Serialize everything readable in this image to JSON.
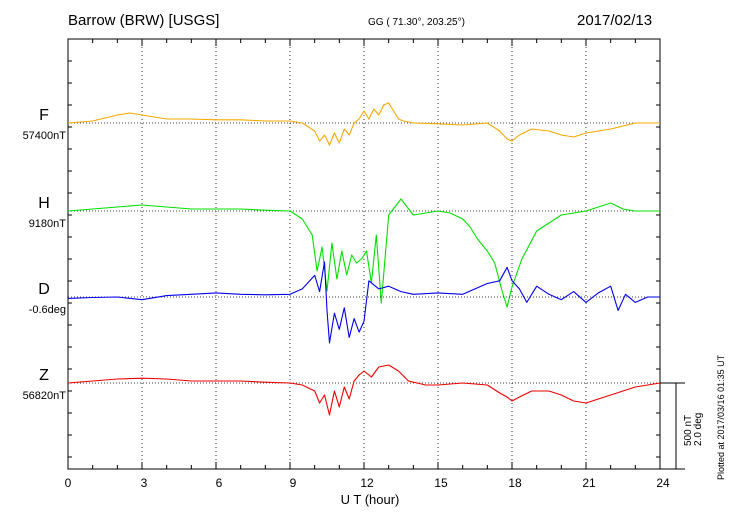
{
  "header": {
    "station": "Barrow (BRW)  [USGS]",
    "coords": "GG ( 71.30°, 203.25°)",
    "date": "2017/02/13"
  },
  "scale_bar": {
    "label_nt": "500 nT",
    "label_deg": "2.0 deg"
  },
  "plotted_note": "Plotted at 2017/03/16 01:35 UT",
  "chart_data": {
    "type": "line",
    "xlabel": "U T (hour)",
    "xlim": [
      0,
      24
    ],
    "xticks": [
      "0",
      "3",
      "6",
      "9",
      "12",
      "15",
      "18",
      "21",
      "24"
    ],
    "grid": true,
    "series": [
      {
        "name": "F",
        "baseline": "57400nT",
        "color": "#f5a800",
        "x": [
          0,
          1,
          2,
          2.5,
          3,
          4,
          5,
          6,
          7,
          8,
          9,
          9.5,
          10,
          10.2,
          10.4,
          10.6,
          10.8,
          11,
          11.2,
          11.4,
          11.6,
          11.8,
          12,
          12.2,
          12.4,
          12.6,
          12.8,
          13,
          13.2,
          13.4,
          13.6,
          14,
          15,
          16,
          17,
          17.5,
          17.8,
          18,
          18.3,
          18.8,
          19.5,
          20,
          20.5,
          21,
          22,
          23,
          24
        ],
        "y": [
          0,
          5,
          20,
          25,
          20,
          10,
          10,
          8,
          8,
          5,
          5,
          0,
          -20,
          -45,
          -30,
          -55,
          -25,
          -50,
          -15,
          -30,
          0,
          10,
          30,
          10,
          35,
          20,
          45,
          50,
          30,
          10,
          5,
          0,
          -2,
          -5,
          0,
          -20,
          -40,
          -45,
          -30,
          -15,
          -20,
          -30,
          -35,
          -25,
          -15,
          0,
          0
        ]
      },
      {
        "name": "H",
        "baseline": "9180nT",
        "color": "#00e000",
        "x": [
          0,
          1,
          2,
          3,
          4,
          5,
          6,
          7,
          8,
          9,
          9.5,
          9.9,
          10.1,
          10.3,
          10.5,
          10.7,
          10.9,
          11.1,
          11.3,
          11.5,
          11.7,
          11.9,
          12.1,
          12.3,
          12.5,
          12.7,
          13,
          13.5,
          14,
          15,
          15.5,
          16,
          16.3,
          16.6,
          17,
          17.3,
          17.6,
          17.8,
          18,
          18.4,
          19,
          19.5,
          20,
          20.5,
          21,
          21.5,
          22,
          22.5,
          23,
          24
        ],
        "y": [
          0,
          5,
          10,
          15,
          10,
          5,
          5,
          5,
          2,
          0,
          -20,
          -60,
          -150,
          -90,
          -200,
          -80,
          -170,
          -100,
          -160,
          -110,
          -130,
          -120,
          -100,
          -180,
          -60,
          -230,
          -10,
          30,
          -10,
          0,
          -5,
          -20,
          -40,
          -70,
          -100,
          -130,
          -200,
          -240,
          -190,
          -120,
          -50,
          -30,
          -10,
          -5,
          0,
          10,
          20,
          5,
          0,
          0
        ]
      },
      {
        "name": "D",
        "baseline": "-0.6deg",
        "color": "#0000ee",
        "x": [
          0,
          1,
          2,
          3,
          4,
          5,
          6,
          7,
          8,
          9,
          9.5,
          10,
          10.2,
          10.4,
          10.5,
          10.6,
          10.8,
          11,
          11.2,
          11.4,
          11.6,
          11.8,
          12,
          12.2,
          12.6,
          13,
          13.5,
          14,
          15,
          16,
          17,
          17.5,
          17.8,
          18,
          18.3,
          18.6,
          19,
          19.5,
          20,
          20.5,
          21,
          21.5,
          22,
          22.3,
          22.6,
          23,
          23.5,
          24
        ],
        "y": [
          -0.05,
          -0.02,
          0,
          -0.1,
          0.05,
          0.1,
          0.15,
          0.1,
          0.08,
          0.1,
          0.3,
          0.8,
          0.2,
          1.3,
          -0.5,
          -1.7,
          -0.6,
          -1.2,
          -0.4,
          -1.5,
          -0.8,
          -1.3,
          -0.9,
          0.6,
          0.3,
          0.4,
          0.2,
          0.1,
          0.15,
          0.1,
          0.5,
          0.6,
          1.1,
          0.6,
          0.3,
          -0.2,
          0.4,
          0.1,
          -0.1,
          0.2,
          -0.2,
          0.15,
          0.4,
          -0.5,
          0.1,
          -0.2,
          0,
          0
        ]
      },
      {
        "name": "Z",
        "baseline": "56820nT",
        "color": "#ee0000",
        "x": [
          0,
          1,
          2,
          3,
          4,
          5,
          6,
          7,
          8,
          9,
          9.5,
          10,
          10.2,
          10.4,
          10.6,
          10.8,
          11,
          11.2,
          11.4,
          11.6,
          11.8,
          12,
          12.3,
          12.6,
          13,
          13.4,
          13.8,
          14.5,
          15,
          16,
          17,
          17.5,
          17.8,
          18,
          18.3,
          18.8,
          19.5,
          20,
          20.5,
          21,
          21.5,
          22,
          23,
          24
        ],
        "y": [
          0,
          5,
          10,
          12,
          10,
          5,
          5,
          5,
          2,
          0,
          -5,
          -20,
          -50,
          -30,
          -80,
          -20,
          -60,
          -10,
          -40,
          5,
          20,
          30,
          15,
          40,
          45,
          30,
          5,
          -5,
          -5,
          0,
          -5,
          -25,
          -35,
          -45,
          -35,
          -20,
          -20,
          -30,
          -45,
          -50,
          -40,
          -30,
          -10,
          0
        ]
      }
    ]
  }
}
